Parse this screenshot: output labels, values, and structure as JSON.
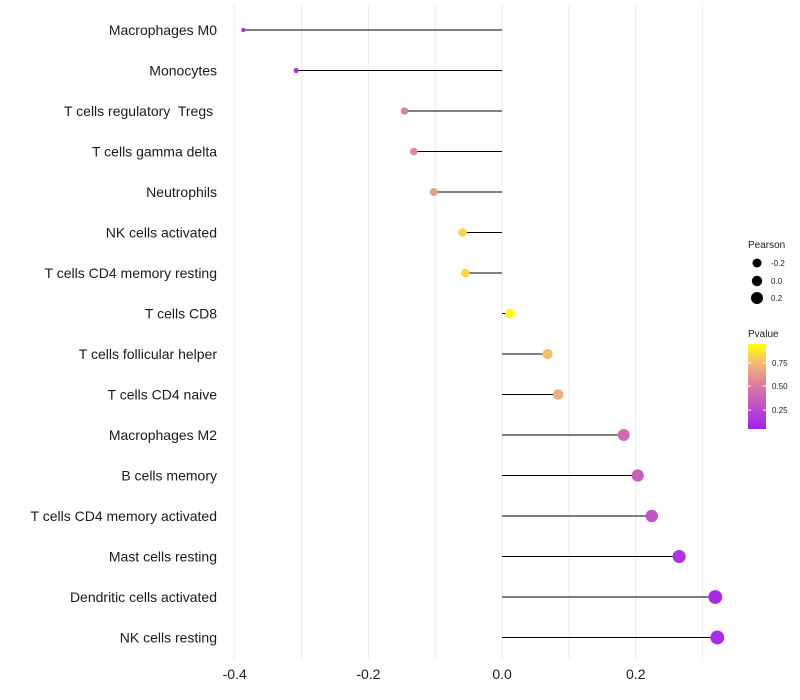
{
  "chart_data": {
    "type": "lollipop",
    "title": "",
    "xlabel": "",
    "ylabel": "",
    "xlim": [
      -0.41,
      0.335
    ],
    "x_ticks": [
      -0.4,
      -0.2,
      0.0,
      0.2
    ],
    "x_tick_labels": [
      "-0.4",
      "-0.2",
      "0.0",
      "0.2"
    ],
    "baseline": 0.0,
    "grid": "vertical",
    "categories": [
      "Macrophages M0",
      "Monocytes",
      "T cells regulatory  Tregs ",
      "T cells gamma delta",
      "Neutrophils",
      "NK cells activated",
      "T cells CD4 memory resting",
      "T cells CD8",
      "T cells follicular helper",
      "T cells CD4 naive",
      "Macrophages M2",
      "B cells memory",
      "T cells CD4 memory activated",
      "Mast cells resting",
      "Dendritic cells activated",
      "NK cells resting"
    ],
    "pearson": [
      -0.387,
      -0.308,
      -0.146,
      -0.132,
      -0.102,
      -0.059,
      -0.055,
      0.012,
      0.068,
      0.084,
      0.182,
      0.203,
      0.224,
      0.265,
      0.319,
      0.322
    ],
    "pvalue": [
      0.03,
      0.12,
      0.52,
      0.58,
      0.66,
      0.86,
      0.88,
      1.0,
      0.8,
      0.73,
      0.42,
      0.36,
      0.3,
      0.12,
      0.06,
      0.06
    ],
    "legend": {
      "size_title": "Pearson",
      "size_labels": [
        "-0.2",
        "0.0",
        "0.2"
      ],
      "color_title": "Pvalue",
      "color_labels": [
        "0.75",
        "0.50",
        "0.25"
      ],
      "placement": "right"
    },
    "colors": {
      "low": "#a020f0",
      "mid": "#d879a7",
      "high": "#ffff00",
      "segment": "#000000",
      "grid": "#ebebeb"
    }
  }
}
